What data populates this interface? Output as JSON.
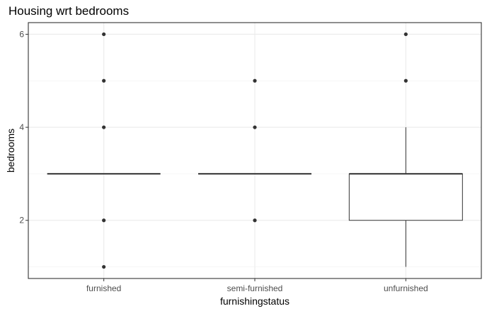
{
  "chart_data": {
    "type": "boxplot",
    "title": "Housing wrt bedrooms",
    "xlabel": "furnishingstatus",
    "ylabel": "bedrooms",
    "categories": [
      "furnished",
      "semi-furnished",
      "unfurnished"
    ],
    "ylim": [
      0.75,
      6.25
    ],
    "yticks": [
      2,
      4,
      6
    ],
    "grid": true,
    "boxes": [
      {
        "category": "furnished",
        "min": 3,
        "q1": 3,
        "median": 3,
        "q3": 3,
        "max": 3,
        "outliers": [
          1,
          2,
          4,
          5,
          6
        ]
      },
      {
        "category": "semi-furnished",
        "min": 3,
        "q1": 3,
        "median": 3,
        "q3": 3,
        "max": 3,
        "outliers": [
          2,
          4,
          5
        ]
      },
      {
        "category": "unfurnished",
        "min": 1,
        "q1": 2,
        "median": 3,
        "q3": 3,
        "max": 4,
        "outliers": [
          5,
          6
        ]
      }
    ]
  }
}
